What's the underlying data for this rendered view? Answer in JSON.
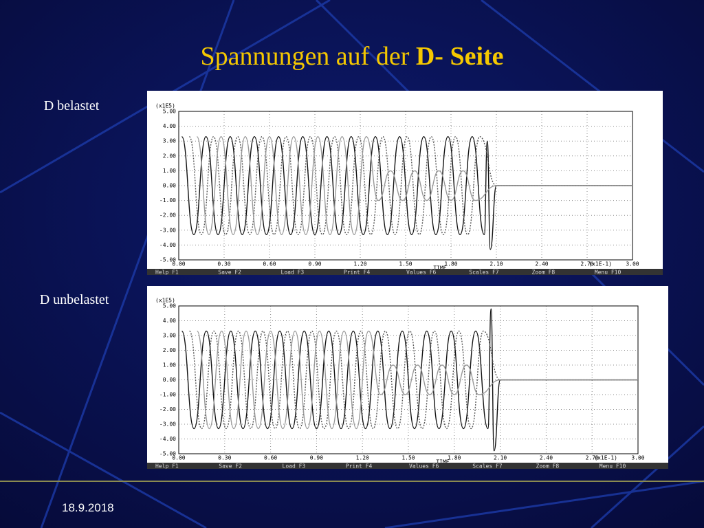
{
  "slide": {
    "title_regular": "Spannungen auf der",
    "title_bold": "D- Seite",
    "date": "18.9.2018"
  },
  "chart_data": [
    {
      "type": "line",
      "title": "D belastet",
      "x_label": "TIME",
      "x_unit": "(x1E-1)",
      "y_unit": "(x1E5)",
      "menu": [
        "Help F1",
        "Save F2",
        "Load F3",
        "Print F4",
        "Values F6",
        "Scales F7",
        "Zoom F8",
        "Menu F10"
      ],
      "xlim": [
        0,
        3
      ],
      "ylim": [
        -5,
        5
      ],
      "grid": true,
      "xticks": [
        {
          "value": 0,
          "label": "0.00"
        },
        {
          "value": 0.3,
          "label": "0.30"
        },
        {
          "value": 0.6,
          "label": "0.60"
        },
        {
          "value": 0.9,
          "label": "0.90"
        },
        {
          "value": 1.2,
          "label": "1.20"
        },
        {
          "value": 1.5,
          "label": "1.50"
        },
        {
          "value": 1.8,
          "label": "1.80"
        },
        {
          "value": 2.1,
          "label": "2.10"
        },
        {
          "value": 2.4,
          "label": "2.40"
        },
        {
          "value": 2.7,
          "label": "2.70"
        },
        {
          "value": 3,
          "label": "3.00"
        }
      ],
      "yticks": [
        {
          "value": 5,
          "label": "5.00"
        },
        {
          "value": 4,
          "label": "4.00"
        },
        {
          "value": 3,
          "label": "3.00"
        },
        {
          "value": 2,
          "label": "2.00"
        },
        {
          "value": 1,
          "label": "1.00"
        },
        {
          "value": 0,
          "label": "0.00"
        },
        {
          "value": -1,
          "label": "-1.00"
        },
        {
          "value": -2,
          "label": "-2.00"
        },
        {
          "value": -3,
          "label": "-3.00"
        },
        {
          "value": -4,
          "label": "-4.00"
        },
        {
          "value": -5,
          "label": "-5.00"
        }
      ],
      "series": [
        {
          "color": "#111111",
          "dash": "none",
          "x": [
            0.02,
            0.1,
            0.18,
            0.26,
            0.34,
            0.42,
            0.5,
            0.58,
            0.66,
            0.74,
            0.82,
            0.9,
            0.98,
            1.06,
            1.14,
            1.22,
            1.3,
            1.38,
            1.46,
            1.54,
            1.62,
            1.7,
            1.78,
            1.86,
            1.94,
            2.02,
            2.04,
            2.06,
            2.1,
            3.0
          ],
          "values": [
            3.3,
            -3.3,
            3.3,
            -3.3,
            3.3,
            -3.3,
            3.3,
            -3.3,
            3.3,
            -3.3,
            3.3,
            -3.3,
            3.3,
            -3.3,
            3.3,
            -3.3,
            3.3,
            -3.3,
            3.3,
            -3.3,
            3.3,
            -3.3,
            3.3,
            -3.3,
            3.3,
            -3.3,
            3.0,
            -4.3,
            0,
            0
          ]
        },
        {
          "color": "#555555",
          "dash": "2 2",
          "x": [
            0.07,
            0.15,
            0.23,
            0.31,
            0.39,
            0.47,
            0.55,
            0.63,
            0.71,
            0.79,
            0.87,
            0.95,
            1.03,
            1.11,
            1.19,
            1.27,
            1.35,
            1.43,
            1.51,
            1.59,
            1.67,
            1.75,
            1.83,
            1.91,
            1.99,
            2.1,
            3.0
          ],
          "values": [
            3.3,
            -3.3,
            3.3,
            -3.3,
            3.3,
            -3.3,
            3.3,
            -3.3,
            3.3,
            -3.3,
            3.3,
            -3.3,
            3.3,
            -3.3,
            3.3,
            -3.3,
            3.3,
            -3.3,
            3.3,
            -3.3,
            3.3,
            -3.3,
            3.3,
            -3.3,
            3.3,
            0,
            0
          ]
        },
        {
          "color": "#999999",
          "dash": "none",
          "x": [
            0.12,
            0.2,
            0.28,
            0.36,
            0.44,
            0.52,
            0.6,
            0.68,
            0.76,
            0.84,
            0.92,
            1.0,
            1.08,
            1.16,
            1.24,
            1.32,
            1.4,
            1.48,
            1.56,
            1.64,
            1.72,
            1.8,
            1.88,
            1.96,
            2.1,
            3.0
          ],
          "values": [
            3.3,
            -3.3,
            3.3,
            -3.3,
            3.3,
            -3.3,
            3.3,
            -3.3,
            3.3,
            -3.3,
            3.3,
            -3.3,
            3.3,
            -3.3,
            3.3,
            -1.0,
            1.0,
            -1.0,
            1.0,
            -1.0,
            1.0,
            -1.0,
            1.0,
            -1.0,
            0,
            0
          ]
        }
      ]
    },
    {
      "type": "line",
      "title": "D unbelastet",
      "x_label": "TIME",
      "x_unit": "(x1E-1)",
      "y_unit": "(x1E5)",
      "menu": [
        "Help F1",
        "Save F2",
        "Load F3",
        "Print F4",
        "Values F6",
        "Scales F7",
        "Zoom F8",
        "Menu F10"
      ],
      "xlim": [
        0,
        3
      ],
      "ylim": [
        -5,
        5
      ],
      "grid": true,
      "xticks": [
        {
          "value": 0,
          "label": "0.00"
        },
        {
          "value": 0.3,
          "label": "0.30"
        },
        {
          "value": 0.6,
          "label": "0.60"
        },
        {
          "value": 0.9,
          "label": "0.90"
        },
        {
          "value": 1.2,
          "label": "1.20"
        },
        {
          "value": 1.5,
          "label": "1.50"
        },
        {
          "value": 1.8,
          "label": "1.80"
        },
        {
          "value": 2.1,
          "label": "2.10"
        },
        {
          "value": 2.4,
          "label": "2.40"
        },
        {
          "value": 2.7,
          "label": "2.70"
        },
        {
          "value": 3,
          "label": "3.00"
        }
      ],
      "yticks": [
        {
          "value": 5,
          "label": "5.00"
        },
        {
          "value": 4,
          "label": "4.00"
        },
        {
          "value": 3,
          "label": "3.00"
        },
        {
          "value": 2,
          "label": "2.00"
        },
        {
          "value": 1,
          "label": "1.00"
        },
        {
          "value": 0,
          "label": "0.00"
        },
        {
          "value": -1,
          "label": "-1.00"
        },
        {
          "value": -2,
          "label": "-2.00"
        },
        {
          "value": -3,
          "label": "-3.00"
        },
        {
          "value": -4,
          "label": "-4.00"
        },
        {
          "value": -5,
          "label": "-5.00"
        }
      ],
      "series": [
        {
          "color": "#111111",
          "dash": "none",
          "x": [
            0.02,
            0.1,
            0.18,
            0.26,
            0.34,
            0.42,
            0.5,
            0.58,
            0.66,
            0.74,
            0.82,
            0.9,
            0.98,
            1.06,
            1.14,
            1.22,
            1.3,
            1.38,
            1.46,
            1.54,
            1.62,
            1.7,
            1.78,
            1.86,
            1.94,
            2.02,
            2.04,
            2.06,
            2.1,
            3.0
          ],
          "values": [
            3.3,
            -3.3,
            3.3,
            -3.3,
            3.3,
            -3.3,
            3.3,
            -3.3,
            3.3,
            -3.3,
            3.3,
            -3.3,
            3.3,
            -3.3,
            3.3,
            -3.3,
            3.3,
            -3.3,
            3.3,
            -3.3,
            3.3,
            -3.3,
            3.3,
            -3.3,
            3.3,
            -3.3,
            4.8,
            -4.8,
            0,
            0
          ]
        },
        {
          "color": "#555555",
          "dash": "2 2",
          "x": [
            0.07,
            0.15,
            0.23,
            0.31,
            0.39,
            0.47,
            0.55,
            0.63,
            0.71,
            0.79,
            0.87,
            0.95,
            1.03,
            1.11,
            1.19,
            1.27,
            1.35,
            1.43,
            1.51,
            1.59,
            1.67,
            1.75,
            1.83,
            1.91,
            1.99,
            2.1,
            3.0
          ],
          "values": [
            3.3,
            -3.3,
            3.3,
            -3.3,
            3.3,
            -3.3,
            3.3,
            -3.3,
            3.3,
            -3.3,
            3.3,
            -3.3,
            3.3,
            -3.3,
            3.3,
            -3.3,
            3.3,
            -3.3,
            3.3,
            -3.3,
            3.3,
            -3.3,
            3.3,
            -3.3,
            3.3,
            0,
            0
          ]
        },
        {
          "color": "#999999",
          "dash": "none",
          "x": [
            0.12,
            0.2,
            0.28,
            0.36,
            0.44,
            0.52,
            0.6,
            0.68,
            0.76,
            0.84,
            0.92,
            1.0,
            1.08,
            1.16,
            1.24,
            1.32,
            1.4,
            1.48,
            1.56,
            1.64,
            1.72,
            1.8,
            1.88,
            1.96,
            2.1,
            3.0
          ],
          "values": [
            3.3,
            -3.3,
            3.3,
            -3.3,
            3.3,
            -3.3,
            3.3,
            -3.3,
            3.3,
            -3.3,
            3.3,
            -3.3,
            3.3,
            -3.3,
            3.3,
            -1.0,
            1.0,
            -1.0,
            1.0,
            -1.0,
            1.0,
            -1.0,
            1.0,
            -1.0,
            0,
            0
          ]
        }
      ]
    }
  ]
}
